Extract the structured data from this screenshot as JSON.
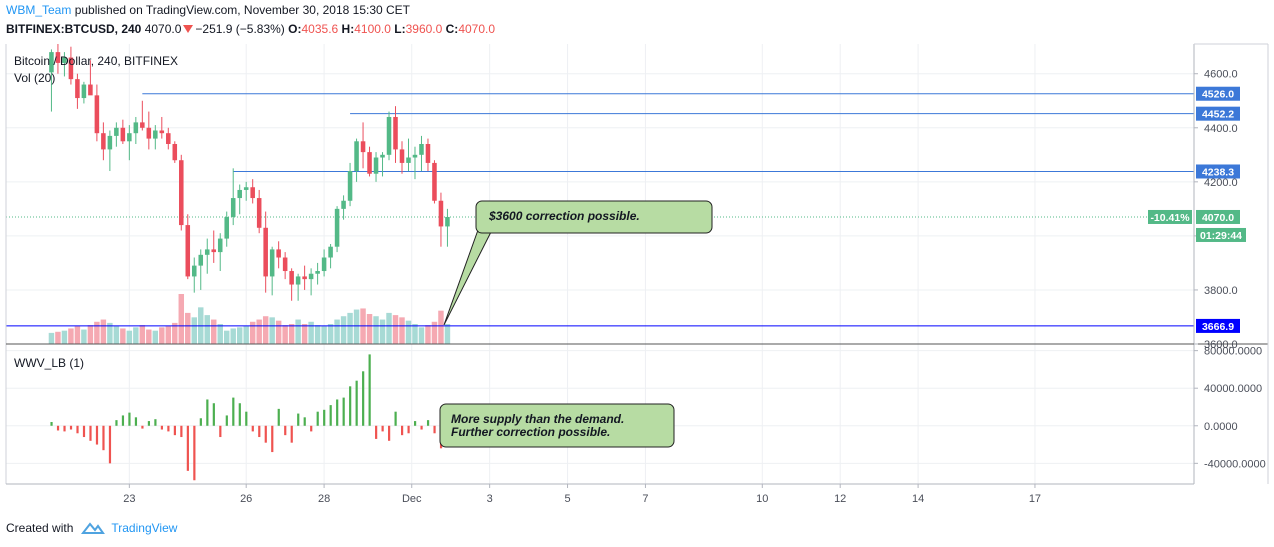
{
  "header": {
    "user": "WBM_Team",
    "published": "published on TradingView.com, November 30, 2018 15:30 CET",
    "symbol": "BITFINEX:BTCUSD, 240",
    "last": "4070.0",
    "change": "−251.9 (−5.83%)",
    "o_label": "O:",
    "o_value": "4035.6",
    "h_label": "H:",
    "h_value": "4100.0",
    "l_label": "L:",
    "l_value": "3960.0",
    "c_label": "C:",
    "c_value": "4070.0"
  },
  "footer": {
    "created_with": "Created with",
    "brand": "TradingView"
  },
  "colors": {
    "up": "#53b987",
    "down": "#eb4d5c",
    "accent": "#2196f3",
    "line_blue": "#3c78d8",
    "support": "#0000ff",
    "note_bg": "#b7dca3"
  },
  "chart_data": [
    {
      "type": "candlestick",
      "title": "Bitcoin / Dollar, 240, BITFINEX",
      "indicator_label": "Vol (20)",
      "ylim": [
        3600,
        4710
      ],
      "y_ticks": [
        3600,
        3800,
        4000,
        4200,
        4400,
        4600
      ],
      "y_tick_labels": [
        "3600.0",
        "3800.0",
        "4000.0",
        "4200.0",
        "4400.0",
        "4600.0"
      ],
      "x_tick_labels": [
        "23",
        "26",
        "28",
        "Dec",
        "3",
        "5",
        "7",
        "10",
        "12",
        "14",
        "17"
      ],
      "x_tick_index": [
        12,
        30,
        42,
        55.5,
        67.5,
        79.5,
        91.5,
        109.5,
        121.5,
        133.5,
        151.5
      ],
      "x_range_bars": [
        -7,
        176
      ],
      "candles": [
        [
          4605,
          4690,
          4460,
          4680
        ],
        [
          4680,
          4710,
          4600,
          4640
        ],
        [
          4640,
          4680,
          4590,
          4660
        ],
        [
          4660,
          4700,
          4560,
          4580
        ],
        [
          4580,
          4600,
          4470,
          4510
        ],
        [
          4510,
          4570,
          4490,
          4560
        ],
        [
          4560,
          4650,
          4530,
          4520
        ],
        [
          4520,
          4560,
          4350,
          4380
        ],
        [
          4380,
          4420,
          4280,
          4320
        ],
        [
          4320,
          4390,
          4240,
          4370
        ],
        [
          4370,
          4420,
          4330,
          4400
        ],
        [
          4400,
          4430,
          4340,
          4350
        ],
        [
          4350,
          4410,
          4280,
          4380
        ],
        [
          4380,
          4440,
          4340,
          4420
        ],
        [
          4420,
          4500,
          4390,
          4400
        ],
        [
          4400,
          4460,
          4320,
          4360
        ],
        [
          4360,
          4410,
          4320,
          4390
        ],
        [
          4390,
          4440,
          4360,
          4380
        ],
        [
          4380,
          4400,
          4320,
          4340
        ],
        [
          4340,
          4350,
          4270,
          4280
        ],
        [
          4280,
          4300,
          4020,
          4040
        ],
        [
          4040,
          4080,
          3840,
          3850
        ],
        [
          3850,
          3920,
          3790,
          3890
        ],
        [
          3890,
          3950,
          3800,
          3930
        ],
        [
          3930,
          3990,
          3860,
          3950
        ],
        [
          3950,
          4020,
          3900,
          3940
        ],
        [
          3940,
          4010,
          3870,
          3990
        ],
        [
          3990,
          4090,
          3960,
          4070
        ],
        [
          4070,
          4250,
          4040,
          4140
        ],
        [
          4140,
          4190,
          4080,
          4170
        ],
        [
          4170,
          4200,
          4130,
          4180
        ],
        [
          4180,
          4210,
          4120,
          4140
        ],
        [
          4140,
          4170,
          4010,
          4030
        ],
        [
          4030,
          4090,
          3790,
          3850
        ],
        [
          3850,
          3960,
          3780,
          3950
        ],
        [
          3950,
          3980,
          3880,
          3920
        ],
        [
          3920,
          3940,
          3840,
          3870
        ],
        [
          3870,
          3880,
          3760,
          3820
        ],
        [
          3820,
          3860,
          3760,
          3850
        ],
        [
          3850,
          3890,
          3800,
          3840
        ],
        [
          3840,
          3880,
          3780,
          3860
        ],
        [
          3860,
          3900,
          3820,
          3870
        ],
        [
          3870,
          3950,
          3850,
          3920
        ],
        [
          3920,
          3970,
          3880,
          3960
        ],
        [
          3960,
          4110,
          3940,
          4100
        ],
        [
          4100,
          4150,
          4060,
          4130
        ],
        [
          4130,
          4270,
          4110,
          4240
        ],
        [
          4240,
          4360,
          4200,
          4350
        ],
        [
          4350,
          4420,
          4250,
          4310
        ],
        [
          4310,
          4330,
          4220,
          4230
        ],
        [
          4230,
          4310,
          4200,
          4290
        ],
        [
          4290,
          4310,
          4220,
          4300
        ],
        [
          4300,
          4460,
          4280,
          4440
        ],
        [
          4440,
          4480,
          4270,
          4320
        ],
        [
          4320,
          4350,
          4230,
          4270
        ],
        [
          4270,
          4360,
          4240,
          4290
        ],
        [
          4290,
          4330,
          4210,
          4300
        ],
        [
          4300,
          4370,
          4240,
          4340
        ],
        [
          4340,
          4360,
          4240,
          4270
        ],
        [
          4270,
          4280,
          4120,
          4130
        ],
        [
          4130,
          4160,
          3960,
          4035
        ],
        [
          4035,
          4100,
          3960,
          4070
        ]
      ],
      "volume": [
        10,
        11,
        12,
        14,
        16,
        13,
        17,
        20,
        22,
        19,
        16,
        14,
        12,
        15,
        17,
        13,
        12,
        15,
        16,
        19,
        45,
        28,
        24,
        33,
        26,
        22,
        18,
        12,
        14,
        15,
        16,
        20,
        22,
        25,
        24,
        21,
        17,
        18,
        22,
        18,
        20,
        17,
        16,
        18,
        22,
        25,
        28,
        31,
        32,
        27,
        25,
        22,
        28,
        26,
        24,
        21,
        18,
        15,
        17,
        20,
        30,
        18
      ],
      "h_lines": [
        {
          "value": 4526.0,
          "label": "4526.0",
          "from_bar": 14
        },
        {
          "value": 4452.2,
          "label": "4452.2",
          "from_bar": 46
        },
        {
          "value": 4238.3,
          "label": "4238.3",
          "from_bar": 28
        }
      ],
      "support_line": {
        "value": 3666.9,
        "label": "3666.9"
      },
      "last_price": {
        "value": 4070.0,
        "label": "4070.0",
        "change_label": "-10.41%",
        "countdown": "01:29:44"
      },
      "annotation": {
        "text": "$3600 correction possible."
      }
    },
    {
      "type": "histogram",
      "title": "WWV_LB (1)",
      "ylim": [
        -62000,
        86000
      ],
      "y_ticks": [
        80000,
        40000,
        0,
        -40000
      ],
      "y_tick_labels": [
        "80000.0000",
        "40000.0000",
        "0.0000",
        "-40000.0000"
      ],
      "values": [
        4000,
        -5000,
        -6000,
        -4000,
        -8000,
        -12000,
        -16000,
        -20000,
        -26000,
        -40000,
        6000,
        11000,
        14000,
        9000,
        -3000,
        5000,
        7000,
        -4000,
        -6000,
        -10000,
        -12000,
        -48000,
        -58000,
        8000,
        28000,
        24000,
        -12000,
        11000,
        30000,
        24000,
        15000,
        -6000,
        -12000,
        -18000,
        -28000,
        18000,
        -10000,
        -18000,
        13000,
        9000,
        -6000,
        15000,
        17000,
        22000,
        28000,
        30000,
        42000,
        48000,
        58000,
        76000,
        -14000,
        -6000,
        -16000,
        15000,
        -10000,
        -8000,
        5000,
        -4000,
        6000,
        -8000,
        -24000,
        6000
      ],
      "annotation": {
        "lines": [
          "More supply than the demand.",
          "Further correction possible."
        ]
      }
    }
  ]
}
